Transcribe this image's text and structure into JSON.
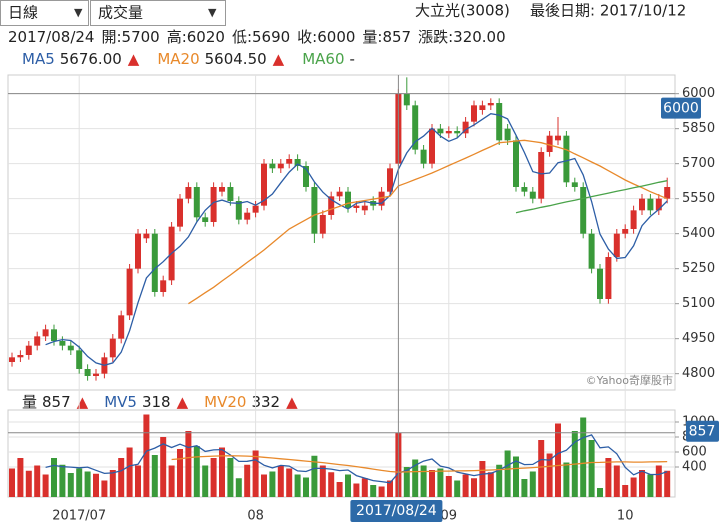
{
  "toolbar": {
    "period": "日線",
    "indicator": "成交量"
  },
  "stock": "大立光(3008)",
  "last_date": "最後日期: 2017/10/12",
  "info": [
    "2017/08/24",
    "開:5700",
    "高:6020",
    "低:5690",
    "收:6000",
    "量:857",
    "漲跌:320.00"
  ],
  "watermark": "©Yahoo奇摩股市",
  "selected_index": 46,
  "chart_data": [
    {
      "type": "candlestick",
      "up_color": "#d9302c",
      "down_color": "#3a9a3a",
      "categories": [
        null,
        null,
        null,
        null,
        null,
        null,
        null,
        null,
        "2017/07",
        null,
        null,
        null,
        null,
        null,
        null,
        null,
        null,
        null,
        null,
        null,
        null,
        null,
        null,
        null,
        null,
        null,
        null,
        null,
        null,
        "08",
        null,
        null,
        null,
        null,
        null,
        null,
        null,
        null,
        null,
        null,
        null,
        null,
        null,
        null,
        null,
        null,
        null,
        null,
        null,
        null,
        null,
        null,
        "09",
        null,
        null,
        null,
        null,
        null,
        null,
        null,
        null,
        null,
        null,
        null,
        null,
        null,
        null,
        null,
        null,
        null,
        null,
        null,
        null,
        "10",
        null,
        null,
        null,
        null,
        null
      ],
      "open": [
        4850,
        4870,
        4880,
        4920,
        4960,
        4990,
        4940,
        4920,
        4900,
        4820,
        4790,
        4800,
        4870,
        4950,
        5050,
        5250,
        5380,
        5400,
        5150,
        5200,
        5430,
        5550,
        5600,
        5470,
        5450,
        5580,
        5600,
        5540,
        5460,
        5490,
        5520,
        5700,
        5680,
        5700,
        5720,
        5690,
        5600,
        5400,
        5480,
        5560,
        5580,
        5510,
        5500,
        5540,
        5520,
        5580,
        5700,
        6000,
        5950,
        5760,
        5700,
        5850,
        5830,
        5840,
        5830,
        5880,
        5930,
        5950,
        5960,
        5850,
        5800,
        5600,
        5580,
        5550,
        5750,
        5800,
        5820,
        5620,
        5600,
        5400,
        5250,
        5120,
        5300,
        5400,
        5420,
        5500,
        5550,
        5500,
        5550
      ],
      "high": [
        4890,
        4900,
        4940,
        4980,
        5010,
        5010,
        4960,
        4940,
        4920,
        4840,
        4820,
        4890,
        4970,
        5070,
        5270,
        5420,
        5420,
        5420,
        5220,
        5450,
        5570,
        5620,
        5620,
        5490,
        5620,
        5620,
        5620,
        5560,
        5510,
        5540,
        5720,
        5720,
        5720,
        5740,
        5740,
        5710,
        5620,
        5500,
        5580,
        5600,
        5600,
        5540,
        5540,
        5560,
        5600,
        5700,
        6020,
        6070,
        5970,
        5780,
        5870,
        5870,
        5860,
        5860,
        5900,
        5970,
        5970,
        5980,
        5980,
        5870,
        5820,
        5620,
        5600,
        5770,
        5840,
        5900,
        5840,
        5640,
        5620,
        5420,
        5270,
        5320,
        5420,
        5440,
        5520,
        5570,
        5570,
        5570,
        5640
      ],
      "low": [
        4830,
        4850,
        4860,
        4900,
        4940,
        4920,
        4900,
        4880,
        4800,
        4770,
        4770,
        4780,
        4850,
        4930,
        5030,
        5230,
        5360,
        5130,
        5130,
        5180,
        5410,
        5530,
        5450,
        5430,
        5430,
        5560,
        5520,
        5440,
        5440,
        5470,
        5500,
        5660,
        5660,
        5680,
        5670,
        5580,
        5360,
        5380,
        5460,
        5540,
        5490,
        5490,
        5480,
        5500,
        5500,
        5560,
        5690,
        5930,
        5740,
        5680,
        5680,
        5810,
        5810,
        5810,
        5810,
        5860,
        5910,
        5930,
        5780,
        5780,
        5580,
        5560,
        5530,
        5530,
        5730,
        5780,
        5600,
        5580,
        5380,
        5230,
        5100,
        5100,
        5280,
        5380,
        5400,
        5480,
        5480,
        5480,
        5530
      ],
      "close": [
        4870,
        4880,
        4920,
        4960,
        4990,
        4940,
        4920,
        4900,
        4820,
        4790,
        4800,
        4870,
        4950,
        5050,
        5250,
        5400,
        5400,
        5150,
        5200,
        5430,
        5550,
        5600,
        5470,
        5450,
        5600,
        5600,
        5540,
        5460,
        5490,
        5520,
        5700,
        5680,
        5700,
        5720,
        5690,
        5600,
        5400,
        5480,
        5560,
        5580,
        5510,
        5520,
        5520,
        5520,
        5580,
        5680,
        6000,
        5950,
        5760,
        5700,
        5850,
        5830,
        5840,
        5830,
        5880,
        5950,
        5950,
        5960,
        5800,
        5800,
        5600,
        5580,
        5550,
        5750,
        5820,
        5820,
        5620,
        5600,
        5400,
        5250,
        5120,
        5300,
        5400,
        5420,
        5500,
        5550,
        5500,
        5550,
        5600
      ],
      "series": [
        {
          "name": "MA5",
          "color": "#2d5ea6",
          "legend_label": "5676.00",
          "values": [
            null,
            null,
            null,
            null,
            4924,
            4938,
            4946,
            4942,
            4914,
            4874,
            4846,
            4836,
            4846,
            4892,
            4984,
            5104,
            5210,
            5250,
            5280,
            5316,
            5346,
            5386,
            5450,
            5500,
            5534,
            5544,
            5532,
            5530,
            5538,
            5522,
            5542,
            5570,
            5618,
            5664,
            5698,
            5678,
            5622,
            5578,
            5546,
            5524,
            5506,
            5530,
            5538,
            5530,
            5530,
            5564,
            5676,
            5746,
            5794,
            5818,
            5852,
            5818,
            5796,
            5810,
            5846,
            5866,
            5890,
            5914,
            5908,
            5892,
            5822,
            5748,
            5666,
            5656,
            5660,
            5704,
            5712,
            5722,
            5652,
            5538,
            5398,
            5334,
            5294,
            5298,
            5348,
            5434,
            5474,
            5504,
            5540
          ]
        },
        {
          "name": "MA20",
          "color": "#e8892b",
          "legend_label": "5604.50",
          "values": [
            null,
            null,
            null,
            null,
            null,
            null,
            null,
            null,
            null,
            null,
            null,
            null,
            null,
            null,
            null,
            null,
            null,
            null,
            null,
            null,
            null,
            5100,
            5123,
            5147,
            5170,
            5197,
            5223,
            5250,
            5277,
            5303,
            5330,
            5360,
            5390,
            5420,
            5440,
            5460,
            5480,
            5492,
            5505,
            5517,
            5530,
            5536,
            5542,
            5548,
            5554,
            5560,
            5604.5,
            5618,
            5632,
            5646,
            5660,
            5676,
            5692,
            5708,
            5724,
            5740,
            5757,
            5773,
            5790,
            5793,
            5797,
            5800,
            5795,
            5790,
            5780,
            5770,
            5760,
            5742,
            5725,
            5707,
            5690,
            5670,
            5650,
            5630,
            5613,
            5597,
            5580,
            5565,
            5550
          ]
        },
        {
          "name": "MA60",
          "color": "#4aa34a",
          "legend_label": "-",
          "values": [
            null,
            null,
            null,
            null,
            null,
            null,
            null,
            null,
            null,
            null,
            null,
            null,
            null,
            null,
            null,
            null,
            null,
            null,
            null,
            null,
            null,
            null,
            null,
            null,
            null,
            null,
            null,
            null,
            null,
            null,
            null,
            null,
            null,
            null,
            null,
            null,
            null,
            null,
            null,
            null,
            null,
            null,
            null,
            null,
            null,
            null,
            null,
            null,
            null,
            null,
            null,
            null,
            null,
            null,
            null,
            null,
            null,
            null,
            null,
            null,
            5490,
            5498,
            5505,
            5513,
            5520,
            5528,
            5536,
            5543,
            5551,
            5559,
            5566,
            5574,
            5582,
            5589,
            5597,
            5604,
            5612,
            5620,
            5627
          ]
        }
      ],
      "ylim": [
        4730,
        6080
      ],
      "yticks": [
        4800,
        4950,
        5100,
        5250,
        5400,
        5550,
        5700,
        5850,
        6000
      ],
      "grid": true
    },
    {
      "type": "bar",
      "name": "量",
      "values": [
        380,
        520,
        350,
        420,
        300,
        520,
        430,
        320,
        380,
        340,
        310,
        220,
        360,
        520,
        660,
        420,
        1100,
        560,
        800,
        420,
        640,
        880,
        680,
        420,
        520,
        660,
        520,
        250,
        430,
        620,
        300,
        340,
        420,
        380,
        300,
        260,
        550,
        420,
        330,
        200,
        300,
        180,
        250,
        160,
        140,
        220,
        857,
        400,
        500,
        420,
        360,
        380,
        280,
        220,
        300,
        250,
        480,
        330,
        430,
        620,
        540,
        240,
        340,
        760,
        580,
        980,
        460,
        880,
        1060,
        760,
        120,
        520,
        420,
        160,
        260,
        360,
        300,
        420,
        350
      ],
      "series": [
        {
          "name": "MV5",
          "color": "#2d5ea6",
          "values": [
            null,
            null,
            null,
            null,
            394,
            422,
            404,
            398,
            390,
            398,
            356,
            314,
            322,
            350,
            414,
            436,
            612,
            652,
            708,
            660,
            704,
            660,
            684,
            608,
            628,
            632,
            560,
            474,
            476,
            496,
            424,
            388,
            422,
            412,
            348,
            340,
            382,
            382,
            372,
            352,
            360,
            286,
            252,
            218,
            206,
            190,
            318,
            355,
            423,
            479,
            507,
            412,
            388,
            332,
            308,
            286,
            306,
            316,
            358,
            422,
            480,
            432,
            434,
            500,
            492,
            580,
            624,
            732,
            792,
            828,
            656,
            668,
            576,
            396,
            296,
            344,
            300,
            300,
            338
          ]
        },
        {
          "name": "MV20",
          "color": "#e8892b",
          "values": [
            null,
            null,
            null,
            null,
            null,
            null,
            null,
            null,
            null,
            null,
            null,
            null,
            null,
            null,
            null,
            null,
            null,
            null,
            null,
            500,
            510,
            525,
            535,
            540,
            545,
            548,
            550,
            548,
            545,
            540,
            530,
            520,
            510,
            500,
            490,
            478,
            468,
            458,
            446,
            432,
            420,
            405,
            390,
            372,
            355,
            340,
            332,
            335,
            338,
            340,
            342,
            345,
            346,
            348,
            350,
            352,
            356,
            360,
            365,
            372,
            380,
            386,
            392,
            400,
            410,
            420,
            428,
            438,
            450,
            460,
            462,
            465,
            468,
            468,
            466,
            466,
            468,
            470,
            472
          ]
        }
      ],
      "ylim": [
        0,
        1160
      ],
      "yticks": [
        400,
        600,
        800,
        1000
      ],
      "grid": true
    }
  ]
}
